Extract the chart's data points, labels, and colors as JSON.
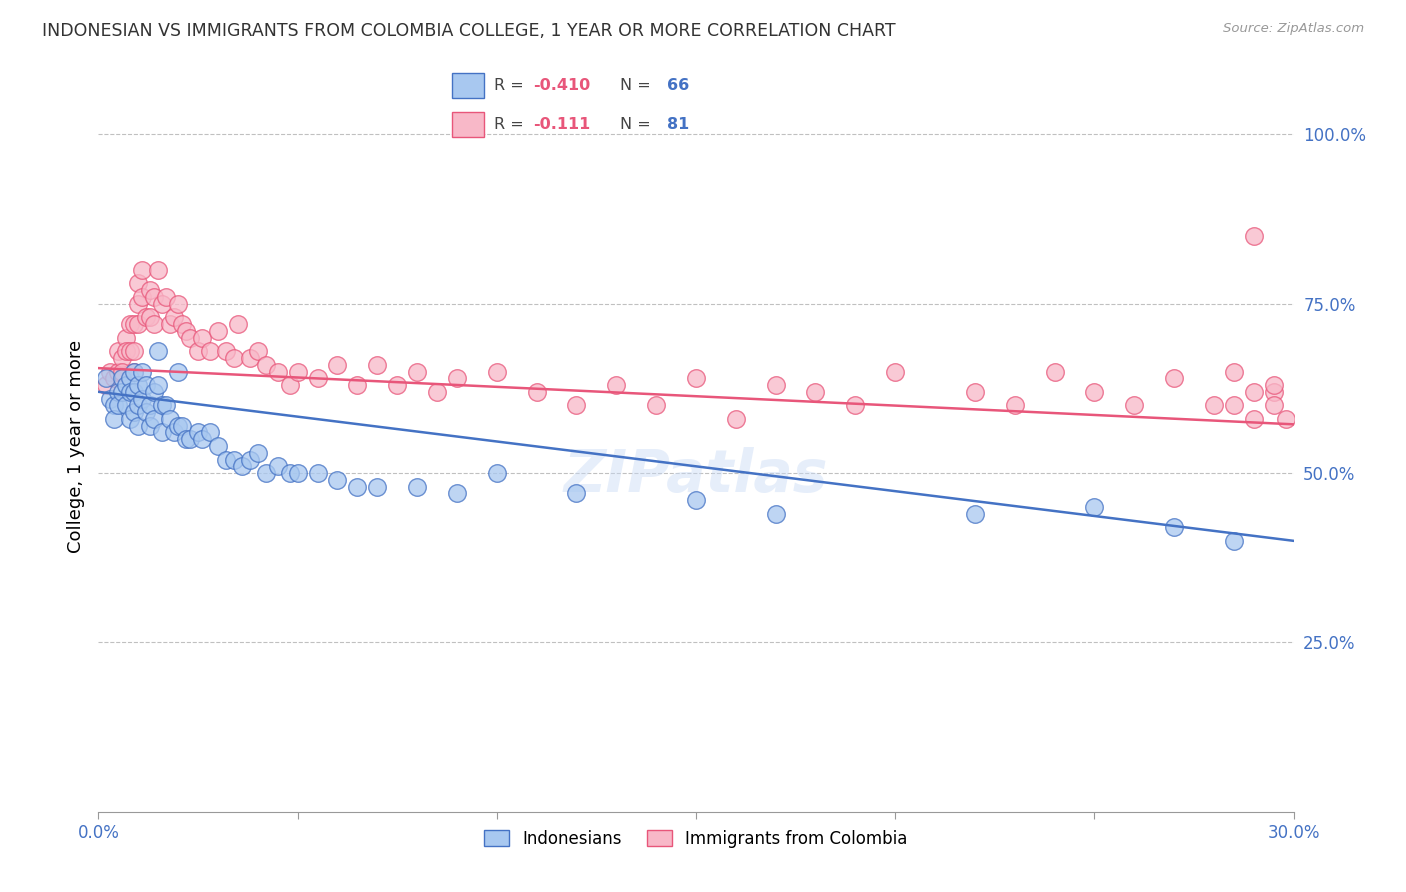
{
  "title": "INDONESIAN VS IMMIGRANTS FROM COLOMBIA COLLEGE, 1 YEAR OR MORE CORRELATION CHART",
  "source_text": "Source: ZipAtlas.com",
  "ylabel": "College, 1 year or more",
  "ytick_labels": [
    "100.0%",
    "75.0%",
    "50.0%",
    "25.0%"
  ],
  "ytick_values": [
    1.0,
    0.75,
    0.5,
    0.25
  ],
  "ylim": [
    0.0,
    1.08
  ],
  "xlim": [
    0.0,
    0.3
  ],
  "blue_color": "#A8C8F0",
  "pink_color": "#F8B8C8",
  "line_blue": "#4472C4",
  "line_pink": "#E8567A",
  "axis_label_color": "#4472C4",
  "watermark": "ZIPatlas",
  "legend_items": [
    {
      "label": "R = -0.410  N = 66",
      "color": "#A8C8F0",
      "edge": "#4472C4"
    },
    {
      "label": "R =  -0.111  N =  81",
      "color": "#F8B8C8",
      "edge": "#E8567A"
    }
  ],
  "bottom_legend": [
    "Indonesians",
    "Immigrants from Colombia"
  ],
  "indonesian_x": [
    0.002,
    0.003,
    0.004,
    0.004,
    0.005,
    0.005,
    0.006,
    0.006,
    0.007,
    0.007,
    0.008,
    0.008,
    0.008,
    0.009,
    0.009,
    0.009,
    0.01,
    0.01,
    0.01,
    0.011,
    0.011,
    0.012,
    0.012,
    0.013,
    0.013,
    0.014,
    0.014,
    0.015,
    0.015,
    0.016,
    0.016,
    0.017,
    0.018,
    0.019,
    0.02,
    0.02,
    0.021,
    0.022,
    0.023,
    0.025,
    0.026,
    0.028,
    0.03,
    0.032,
    0.034,
    0.036,
    0.038,
    0.04,
    0.042,
    0.045,
    0.048,
    0.05,
    0.055,
    0.06,
    0.065,
    0.07,
    0.08,
    0.09,
    0.1,
    0.12,
    0.15,
    0.17,
    0.22,
    0.25,
    0.27,
    0.285
  ],
  "indonesian_y": [
    0.64,
    0.61,
    0.6,
    0.58,
    0.62,
    0.6,
    0.64,
    0.62,
    0.63,
    0.6,
    0.64,
    0.62,
    0.58,
    0.65,
    0.62,
    0.59,
    0.63,
    0.6,
    0.57,
    0.65,
    0.61,
    0.63,
    0.59,
    0.6,
    0.57,
    0.62,
    0.58,
    0.68,
    0.63,
    0.6,
    0.56,
    0.6,
    0.58,
    0.56,
    0.65,
    0.57,
    0.57,
    0.55,
    0.55,
    0.56,
    0.55,
    0.56,
    0.54,
    0.52,
    0.52,
    0.51,
    0.52,
    0.53,
    0.5,
    0.51,
    0.5,
    0.5,
    0.5,
    0.49,
    0.48,
    0.48,
    0.48,
    0.47,
    0.5,
    0.47,
    0.46,
    0.44,
    0.44,
    0.45,
    0.42,
    0.4
  ],
  "colombia_x": [
    0.002,
    0.003,
    0.004,
    0.005,
    0.005,
    0.006,
    0.006,
    0.007,
    0.007,
    0.008,
    0.008,
    0.009,
    0.009,
    0.009,
    0.01,
    0.01,
    0.01,
    0.011,
    0.011,
    0.012,
    0.013,
    0.013,
    0.014,
    0.014,
    0.015,
    0.016,
    0.017,
    0.018,
    0.019,
    0.02,
    0.021,
    0.022,
    0.023,
    0.025,
    0.026,
    0.028,
    0.03,
    0.032,
    0.034,
    0.035,
    0.038,
    0.04,
    0.042,
    0.045,
    0.048,
    0.05,
    0.055,
    0.06,
    0.065,
    0.07,
    0.075,
    0.08,
    0.085,
    0.09,
    0.1,
    0.11,
    0.12,
    0.13,
    0.14,
    0.15,
    0.16,
    0.17,
    0.18,
    0.19,
    0.2,
    0.22,
    0.23,
    0.24,
    0.25,
    0.26,
    0.27,
    0.28,
    0.285,
    0.29,
    0.295,
    0.295,
    0.298,
    0.295,
    0.29,
    0.285,
    0.29
  ],
  "colombia_y": [
    0.63,
    0.65,
    0.64,
    0.68,
    0.65,
    0.67,
    0.65,
    0.7,
    0.68,
    0.72,
    0.68,
    0.65,
    0.72,
    0.68,
    0.78,
    0.75,
    0.72,
    0.8,
    0.76,
    0.73,
    0.77,
    0.73,
    0.76,
    0.72,
    0.8,
    0.75,
    0.76,
    0.72,
    0.73,
    0.75,
    0.72,
    0.71,
    0.7,
    0.68,
    0.7,
    0.68,
    0.71,
    0.68,
    0.67,
    0.72,
    0.67,
    0.68,
    0.66,
    0.65,
    0.63,
    0.65,
    0.64,
    0.66,
    0.63,
    0.66,
    0.63,
    0.65,
    0.62,
    0.64,
    0.65,
    0.62,
    0.6,
    0.63,
    0.6,
    0.64,
    0.58,
    0.63,
    0.62,
    0.6,
    0.65,
    0.62,
    0.6,
    0.65,
    0.62,
    0.6,
    0.64,
    0.6,
    0.65,
    0.58,
    0.62,
    0.6,
    0.58,
    0.63,
    0.62,
    0.6,
    0.85
  ]
}
